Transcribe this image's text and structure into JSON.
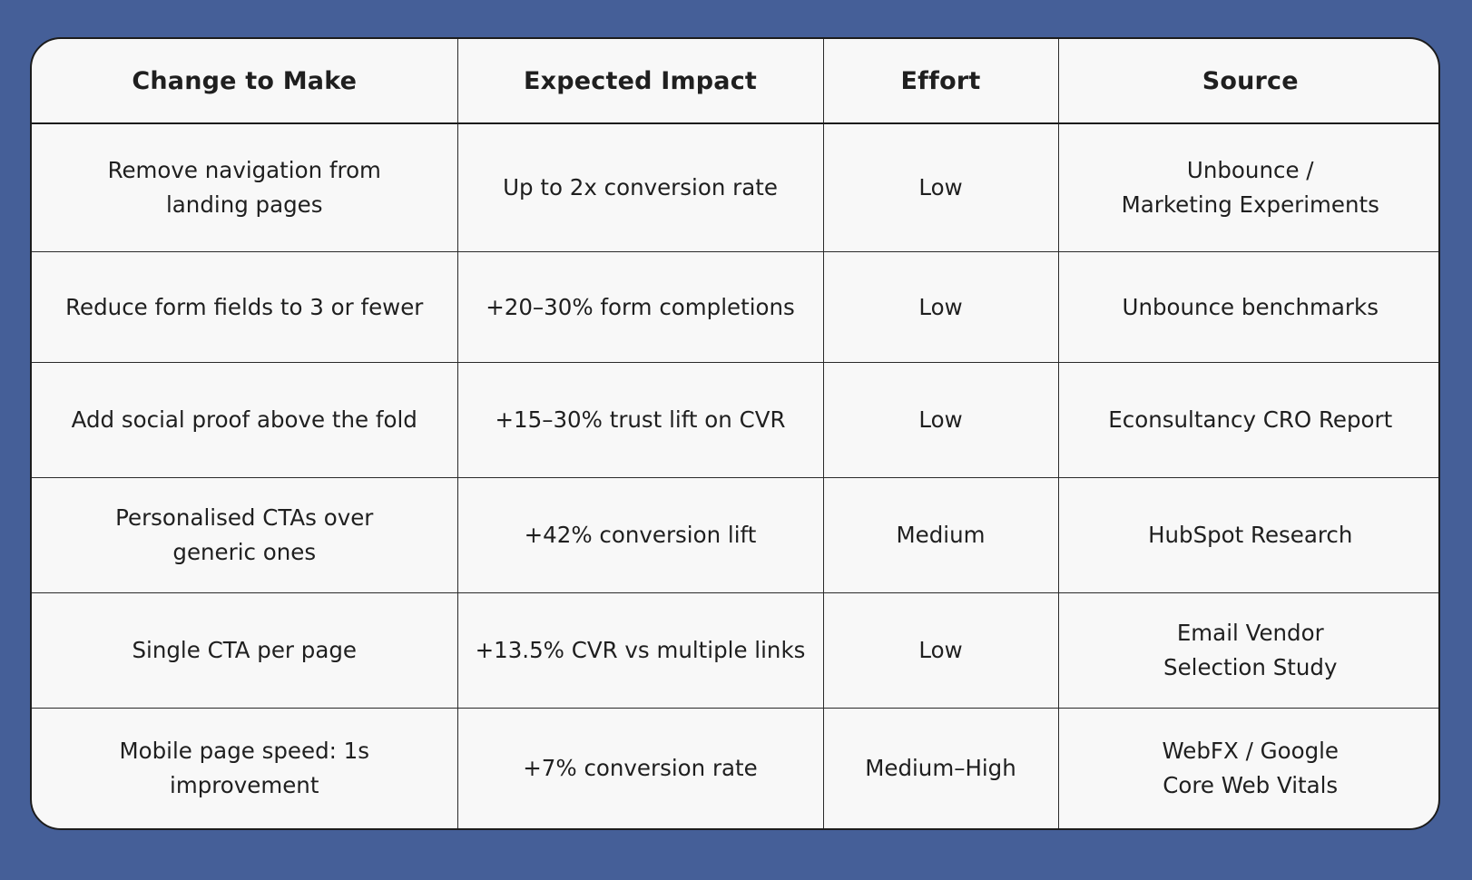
{
  "table": {
    "headers": [
      "Change to Make",
      "Expected Impact",
      "Effort",
      "Source"
    ],
    "rows": [
      {
        "change": [
          "Remove navigation from",
          "landing pages"
        ],
        "impact": [
          "Up to 2x conversion rate"
        ],
        "effort": [
          "Low"
        ],
        "source": [
          "Unbounce /",
          "Marketing Experiments"
        ]
      },
      {
        "change": [
          "Reduce form fields to 3 or fewer"
        ],
        "impact": [
          "+20–30% form completions"
        ],
        "effort": [
          "Low"
        ],
        "source": [
          "Unbounce benchmarks"
        ]
      },
      {
        "change": [
          "Add social proof above the fold"
        ],
        "impact": [
          "+15–30% trust lift on CVR"
        ],
        "effort": [
          "Low"
        ],
        "source": [
          "Econsultancy CRO Report"
        ]
      },
      {
        "change": [
          "Personalised CTAs over",
          "generic ones"
        ],
        "impact": [
          "+42% conversion lift"
        ],
        "effort": [
          "Medium"
        ],
        "source": [
          "HubSpot Research"
        ]
      },
      {
        "change": [
          "Single CTA per page"
        ],
        "impact": [
          "+13.5% CVR vs multiple links"
        ],
        "effort": [
          "Low"
        ],
        "source": [
          "Email Vendor",
          "Selection Study"
        ]
      },
      {
        "change": [
          "Mobile page speed: 1s improvement"
        ],
        "impact": [
          "+7% conversion rate"
        ],
        "effort": [
          "Medium–High"
        ],
        "source": [
          "WebFX / Google",
          "Core Web Vitals"
        ]
      }
    ]
  },
  "colors": {
    "page_background": "#455f98",
    "card_background": "#f8f8f8",
    "text": "#1f1f1f",
    "border": "#1c1c1c"
  }
}
